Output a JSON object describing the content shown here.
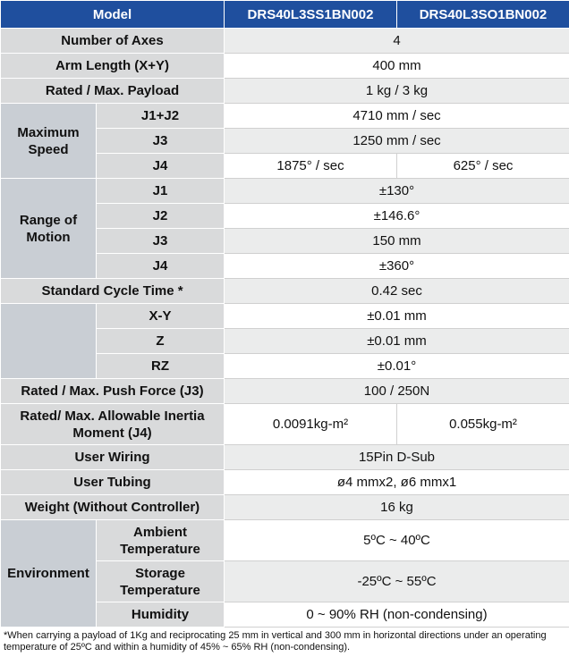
{
  "table": {
    "header": [
      "Model",
      "DRS40L3SS1BN002",
      "DRS40L3SO1BN002"
    ],
    "sections": [
      {
        "label": "Number of Axes",
        "values": [
          "4"
        ]
      },
      {
        "label": "Arm Length (X+Y)",
        "values": [
          "400 mm"
        ]
      },
      {
        "label": "Rated / Max. Payload",
        "values": [
          "1 kg / 3 kg"
        ]
      },
      {
        "group": "Maximum Speed",
        "items": [
          {
            "label": "J1+J2",
            "values": [
              "4710 mm / sec"
            ]
          },
          {
            "label": "J3",
            "values": [
              "1250 mm / sec"
            ]
          },
          {
            "label": "J4",
            "values": [
              "1875° / sec",
              "625° / sec"
            ]
          }
        ]
      },
      {
        "group": "Range of Motion",
        "items": [
          {
            "label": "J1",
            "values": [
              "±130°"
            ]
          },
          {
            "label": "J2",
            "values": [
              "±146.6°"
            ]
          },
          {
            "label": "J3",
            "values": [
              "150 mm"
            ]
          },
          {
            "label": "J4",
            "values": [
              "±360°"
            ]
          }
        ]
      },
      {
        "label": "Standard Cycle Time *",
        "values": [
          "0.42 sec"
        ]
      },
      {
        "items": [
          {
            "label": "X-Y",
            "values": [
              "±0.01 mm"
            ]
          },
          {
            "label": "Z",
            "values": [
              "±0.01 mm"
            ]
          },
          {
            "label": "RZ",
            "values": [
              "±0.01°"
            ]
          }
        ]
      },
      {
        "label": "Rated / Max. Push Force (J3)",
        "values": [
          "100 / 250N"
        ]
      },
      {
        "label": "Rated/ Max. Allowable Inertia Moment (J4)",
        "values": [
          "0.0091kg-m²",
          "0.055kg-m²"
        ]
      },
      {
        "label": "User Wiring",
        "values": [
          "15Pin D-Sub"
        ]
      },
      {
        "label": "User Tubing",
        "values": [
          "ø4 mmx2, ø6 mmx1"
        ]
      },
      {
        "label": "Weight (Without Controller)",
        "values": [
          "16 kg"
        ]
      },
      {
        "group": "Environment",
        "items": [
          {
            "label": "Ambient Temperature",
            "values": [
              "5ºC ~ 40ºC"
            ]
          },
          {
            "label": "Storage Temperature",
            "values": [
              "-25ºC ~ 55ºC"
            ]
          },
          {
            "label": "Humidity",
            "values": [
              "0 ~ 90% RH (non-condensing)"
            ]
          }
        ]
      }
    ]
  },
  "footnote": "*When carrying a payload of 1Kg and reciprocating 25 mm in vertical and 300 mm in horizontal directions under an operating temperature of 25ºC and within a humidity of 45% ~ 65% RH (non-condensing)."
}
